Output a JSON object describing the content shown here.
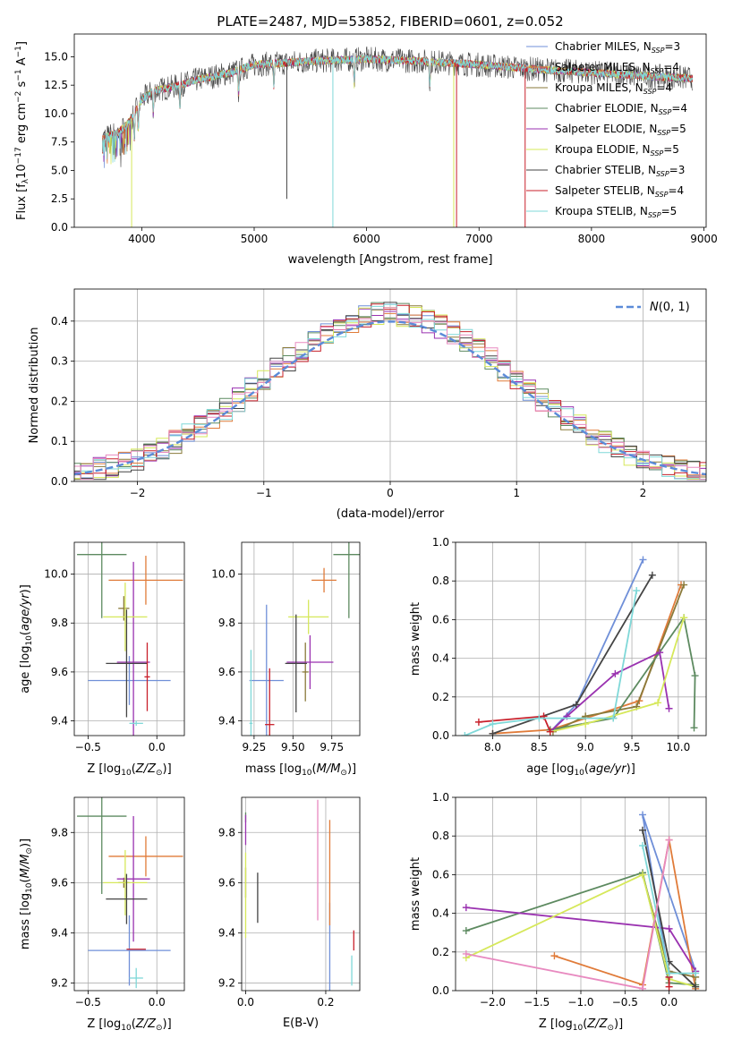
{
  "figure": {
    "title": "PLATE=2487, MJD=53852, FIBERID=0601, z=0.052"
  },
  "series_styles": [
    {
      "name": "Chabrier MILES",
      "legend": "Chabrier MILES, N",
      "nssp": "=3",
      "color": "#6f8fd8"
    },
    {
      "name": "Salpeter MILES",
      "legend": "Salpeter MILES, N",
      "nssp": "=4",
      "color": "#e07b39"
    },
    {
      "name": "Kroupa MILES",
      "legend": "Kroupa MILES, N",
      "nssp": "=4",
      "color": "#8a7a3a"
    },
    {
      "name": "Chabrier ELODIE",
      "legend": "Chabrier ELODIE, N",
      "nssp": "=4",
      "color": "#5d8a60"
    },
    {
      "name": "Salpeter ELODIE",
      "legend": "Salpeter ELODIE, N",
      "nssp": "=5",
      "color": "#9a32b0"
    },
    {
      "name": "Kroupa ELODIE",
      "legend": "Kroupa ELODIE, N",
      "nssp": "=5",
      "color": "#d6e85a"
    },
    {
      "name": "Chabrier STELIB",
      "legend": "Chabrier STELIB, N",
      "nssp": "=3",
      "color": "#444444"
    },
    {
      "name": "Salpeter STELIB",
      "legend": "Salpeter STELIB, N",
      "nssp": "=4",
      "color": "#c8202b"
    },
    {
      "name": "Kroupa STELIB",
      "legend": "Kroupa STELIB, N",
      "nssp": "=5",
      "color": "#7fd8d8"
    }
  ],
  "chart_data": [
    {
      "id": "spectrum",
      "type": "line",
      "xlabel": "wavelength [Angstrom, rest frame]",
      "ylabel": "Flux [f",
      "ylabel_unit": "10",
      "ylabel_tail": " erg cm",
      "xlim": [
        3400,
        9020
      ],
      "ylim": [
        0,
        17
      ],
      "xticks": [
        "4000",
        "5000",
        "6000",
        "7000",
        "8000",
        "9000"
      ],
      "yticks": [
        "0.0",
        "2.5",
        "5.0",
        "7.5",
        "10.0",
        "12.5",
        "15.0"
      ],
      "continuum": [
        [
          3650,
          7.8
        ],
        [
          3800,
          8.4
        ],
        [
          3900,
          9.4
        ],
        [
          4000,
          11.2
        ],
        [
          4100,
          12.0
        ],
        [
          4300,
          12.4
        ],
        [
          4500,
          13.0
        ],
        [
          4800,
          13.6
        ],
        [
          5000,
          14.3
        ],
        [
          5500,
          14.6
        ],
        [
          6000,
          14.8
        ],
        [
          6500,
          14.6
        ],
        [
          7000,
          14.3
        ],
        [
          7500,
          13.9
        ],
        [
          8000,
          13.6
        ],
        [
          8500,
          13.3
        ],
        [
          8900,
          13.1
        ]
      ],
      "data_range": [
        3650,
        8900
      ],
      "dropouts": [
        {
          "series": "Kroupa ELODIE",
          "x": 3910,
          "y": 0
        },
        {
          "series": "Kroupa STELIB",
          "x": 5700,
          "y": 0
        },
        {
          "series": "Kroupa ELODIE",
          "x": 6775,
          "y": 0
        },
        {
          "series": "Salpeter STELIB",
          "x": 6800,
          "y": 0
        },
        {
          "series": "Salpeter STELIB",
          "x": 7410,
          "y": 0
        },
        {
          "series": "Chabrier STELIB",
          "x": 5290,
          "y": 2.5
        }
      ]
    },
    {
      "id": "residuals",
      "type": "histogram",
      "xlabel": "(data-model)/error",
      "ylabel": "Normed distribution",
      "xlim": [
        -2.5,
        2.5
      ],
      "ylim": [
        0,
        0.48
      ],
      "xticks": [
        -2,
        -1,
        0,
        1,
        2
      ],
      "yticks": [
        0.0,
        0.1,
        0.2,
        0.3,
        0.4
      ],
      "reference_curve": {
        "name": "N(0,1)",
        "mean": 0,
        "sigma": 1,
        "color": "#5b8bd8"
      },
      "bin_width": 0.1
    },
    {
      "id": "age_vs_Z",
      "type": "errorbar",
      "xlabel": "Z [log",
      "ylabel": "age  [log",
      "xlim": [
        -0.6,
        0.2
      ],
      "ylim": [
        9.34,
        10.13
      ],
      "xticks": [
        "−0.5",
        "0.0"
      ],
      "yticks": [
        "9.4",
        "9.6",
        "9.8",
        "10.0"
      ],
      "points": [
        {
          "series": "Chabrier MILES",
          "x": -0.2,
          "xerr": 0.3,
          "y": 9.565,
          "yerr": 0.1
        },
        {
          "series": "Salpeter MILES",
          "x": -0.08,
          "xerr": 0.27,
          "y": 9.975,
          "yerr": 0.1
        },
        {
          "series": "Kroupa MILES",
          "x": -0.24,
          "xerr": 0.04,
          "y": 9.86,
          "yerr": 0.05
        },
        {
          "series": "Chabrier ELODIE",
          "x": -0.4,
          "xerr": 0.18,
          "y": 10.08,
          "yerr": 0.26
        },
        {
          "series": "Salpeter ELODIE",
          "x": -0.17,
          "xerr": 0.12,
          "y": 9.64,
          "yerr": 0.41
        },
        {
          "series": "Kroupa ELODIE",
          "x": -0.23,
          "xerr": 0.16,
          "y": 9.825,
          "yerr": 0.14
        },
        {
          "series": "Chabrier STELIB",
          "x": -0.22,
          "xerr": 0.15,
          "y": 9.635,
          "yerr": 0.22
        },
        {
          "series": "Salpeter STELIB",
          "x": -0.07,
          "xerr": 0.02,
          "y": 9.58,
          "yerr": 0.14
        },
        {
          "series": "Kroupa STELIB",
          "x": -0.15,
          "xerr": 0.05,
          "y": 9.39,
          "yerr": 0.01
        }
      ]
    },
    {
      "id": "age_vs_mass",
      "type": "errorbar",
      "xlabel": "mass [log",
      "ylabel": "",
      "xlim": [
        9.17,
        9.93
      ],
      "ylim": [
        9.34,
        10.13
      ],
      "xticks": [
        "9.25",
        "9.50",
        "9.75"
      ],
      "yticks": [
        "9.4",
        "9.6",
        "9.8",
        "10.0"
      ],
      "points": [
        {
          "series": "Chabrier MILES",
          "x": 9.33,
          "xerr": 0.11,
          "y": 9.565,
          "yerr": 0.31
        },
        {
          "series": "Salpeter MILES",
          "x": 9.7,
          "xerr": 0.08,
          "y": 9.975,
          "yerr": 0.05
        },
        {
          "series": "Kroupa MILES",
          "x": 9.58,
          "xerr": 0.02,
          "y": 9.6,
          "yerr": 0.12
        },
        {
          "series": "Chabrier ELODIE",
          "x": 9.86,
          "xerr": 0.1,
          "y": 10.08,
          "yerr": 0.26
        },
        {
          "series": "Salpeter ELODIE",
          "x": 9.61,
          "xerr": 0.15,
          "y": 9.64,
          "yerr": 0.11
        },
        {
          "series": "Kroupa ELODIE",
          "x": 9.6,
          "xerr": 0.13,
          "y": 9.825,
          "yerr": 0.07
        },
        {
          "series": "Chabrier STELIB",
          "x": 9.52,
          "xerr": 0.07,
          "y": 9.635,
          "yerr": 0.2
        },
        {
          "series": "Salpeter STELIB",
          "x": 9.35,
          "xerr": 0.03,
          "y": 9.385,
          "yerr": 0.23
        },
        {
          "series": "Kroupa STELIB",
          "x": 9.23,
          "xerr": 0.01,
          "y": 9.39,
          "yerr": 0.3
        }
      ]
    },
    {
      "id": "mass_weight_vs_age",
      "type": "line",
      "xlabel": "age  [log",
      "ylabel": "mass weight",
      "xlim": [
        7.6,
        10.3
      ],
      "ylim": [
        0,
        1
      ],
      "xticks": [
        "8.0",
        "8.5",
        "9.0",
        "9.5",
        "10.0"
      ],
      "yticks": [
        "0.0",
        "0.2",
        "0.4",
        "0.6",
        "0.8",
        "1.0"
      ],
      "series": [
        {
          "name": "Chabrier MILES",
          "x": [
            8.62,
            8.9,
            9.62
          ],
          "y": [
            0.02,
            0.16,
            0.91
          ]
        },
        {
          "name": "Salpeter MILES",
          "x": [
            8.0,
            8.62,
            9.58,
            10.03
          ],
          "y": [
            0.01,
            0.03,
            0.18,
            0.78
          ]
        },
        {
          "name": "Kroupa MILES",
          "x": [
            8.65,
            9.0,
            9.55,
            10.06
          ],
          "y": [
            0.02,
            0.1,
            0.15,
            0.78
          ]
        },
        {
          "name": "Chabrier ELODIE",
          "x": [
            8.62,
            9.3,
            10.06,
            10.18,
            10.17
          ],
          "y": [
            0.03,
            0.09,
            0.61,
            0.31,
            0.04
          ]
        },
        {
          "name": "Salpeter ELODIE",
          "x": [
            8.62,
            8.8,
            9.32,
            9.8,
            9.9
          ],
          "y": [
            0.02,
            0.1,
            0.32,
            0.43,
            0.14
          ]
        },
        {
          "name": "Kroupa ELODIE",
          "x": [
            8.62,
            9.0,
            9.78,
            10.06
          ],
          "y": [
            0.02,
            0.06,
            0.17,
            0.61
          ]
        },
        {
          "name": "Chabrier STELIB",
          "x": [
            8.0,
            8.9,
            9.72
          ],
          "y": [
            0.01,
            0.16,
            0.83
          ]
        },
        {
          "name": "Salpeter STELIB",
          "x": [
            7.85,
            8.55,
            8.62
          ],
          "y": [
            0.07,
            0.1,
            0.02
          ]
        },
        {
          "name": "Kroupa STELIB",
          "x": [
            7.7,
            8.0,
            8.5,
            9.3,
            9.55
          ],
          "y": [
            0.0,
            0.06,
            0.09,
            0.09,
            0.75
          ]
        }
      ]
    },
    {
      "id": "mass_vs_Z",
      "type": "errorbar",
      "xlabel": "Z [log",
      "ylabel": "mass [log",
      "xlim": [
        -0.6,
        0.2
      ],
      "ylim": [
        9.17,
        9.94
      ],
      "xticks": [
        "−0.5",
        "0.0"
      ],
      "yticks": [
        "9.2",
        "9.4",
        "9.6",
        "9.8"
      ],
      "points": [
        {
          "series": "Chabrier MILES",
          "x": -0.2,
          "xerr": 0.3,
          "y": 9.33,
          "yerr": 0.14
        },
        {
          "series": "Salpeter MILES",
          "x": -0.08,
          "xerr": 0.27,
          "y": 9.705,
          "yerr": 0.08
        },
        {
          "series": "Kroupa MILES",
          "x": -0.24,
          "xerr": 0.04,
          "y": 9.6,
          "yerr": 0.02
        },
        {
          "series": "Chabrier ELODIE",
          "x": -0.4,
          "xerr": 0.18,
          "y": 9.865,
          "yerr": 0.31
        },
        {
          "series": "Salpeter ELODIE",
          "x": -0.17,
          "xerr": 0.12,
          "y": 9.615,
          "yerr": 0.25
        },
        {
          "series": "Kroupa ELODIE",
          "x": -0.23,
          "xerr": 0.16,
          "y": 9.6,
          "yerr": 0.13
        },
        {
          "series": "Chabrier STELIB",
          "x": -0.22,
          "xerr": 0.15,
          "y": 9.535,
          "yerr": 0.1
        },
        {
          "series": "Salpeter STELIB",
          "x": -0.15,
          "xerr": 0.07,
          "y": 9.335,
          "yerr": 0.0
        },
        {
          "series": "Kroupa STELIB",
          "x": -0.15,
          "xerr": 0.05,
          "y": 9.22,
          "yerr": 0.04
        }
      ]
    },
    {
      "id": "mass_vs_ebv",
      "type": "errorbar",
      "xlabel": "E(B-V)",
      "ylabel": "",
      "xlim": [
        -0.01,
        0.285
      ],
      "ylim": [
        9.17,
        9.94
      ],
      "xticks": [
        "0.0",
        "0.2"
      ],
      "yticks": [
        "9.2",
        "9.4",
        "9.6",
        "9.8"
      ],
      "points": [
        {
          "series": "Chabrier MILES",
          "x": 0.21,
          "xerr": 0,
          "y": 9.33,
          "yerr": 0.19
        },
        {
          "series": "Salpeter MILES",
          "x": 0.21,
          "xerr": 0,
          "y": 9.64,
          "yerr": 0.21
        },
        {
          "series": "Kroupa MILES",
          "x": 0.0,
          "xerr": 0,
          "y": 9.6,
          "yerr": 0.06
        },
        {
          "series": "Chabrier ELODIE",
          "x": 0.0,
          "xerr": 0,
          "y": 9.86,
          "yerr": 0.02
        },
        {
          "series": "Salpeter ELODIE",
          "x": 0.0,
          "xerr": 0,
          "y": 9.81,
          "yerr": 0.06
        },
        {
          "series": "Kroupa ELODIE",
          "x": 0.0,
          "xerr": 0,
          "y": 9.55,
          "yerr": 0.17
        },
        {
          "series": "Chabrier STELIB",
          "x": 0.03,
          "xerr": 0,
          "y": 9.54,
          "yerr": 0.1
        },
        {
          "series": "Salpeter STELIB",
          "x": 0.27,
          "xerr": 0,
          "y": 9.37,
          "yerr": 0.04
        },
        {
          "series": "Kroupa STELIB",
          "x": 0.265,
          "xerr": 0,
          "y": 9.25,
          "yerr": 0.06
        },
        {
          "series": "Salpeter MILES pink",
          "x": 0.18,
          "xerr": 0,
          "y": 9.69,
          "yerr": 0.24
        }
      ]
    },
    {
      "id": "mass_weight_vs_Z",
      "type": "line",
      "xlabel": "Z [log",
      "ylabel": "mass weight",
      "xlim": [
        -2.42,
        0.42
      ],
      "ylim": [
        0,
        1
      ],
      "xticks": [
        "−2.0",
        "−1.5",
        "−1.0",
        "−0.5",
        "0.0"
      ],
      "yticks": [
        "0.0",
        "0.2",
        "0.4",
        "0.6",
        "0.8",
        "1.0"
      ],
      "series": [
        {
          "name": "Chabrier MILES",
          "x": [
            0.3,
            -0.3,
            0.0
          ],
          "y": [
            0.1,
            0.91,
            0.07
          ]
        },
        {
          "name": "Salpeter MILES",
          "x": [
            -1.3,
            -0.3,
            0.0,
            0.3
          ],
          "y": [
            0.18,
            0.03,
            0.78,
            0.01
          ]
        },
        {
          "name": "Kroupa MILES",
          "x": [
            -0.3,
            0.0,
            0.3
          ],
          "y": [
            0.6,
            0.1,
            0.07
          ]
        },
        {
          "name": "Chabrier ELODIE",
          "x": [
            -2.3,
            -0.3,
            0.0,
            0.3
          ],
          "y": [
            0.31,
            0.61,
            0.04,
            0.03
          ]
        },
        {
          "name": "Salpeter ELODIE",
          "x": [
            -2.3,
            0.0,
            0.3
          ],
          "y": [
            0.43,
            0.32,
            0.1
          ]
        },
        {
          "name": "Kroupa ELODIE",
          "x": [
            -2.3,
            -0.3,
            0.0,
            0.3
          ],
          "y": [
            0.17,
            0.6,
            0.06,
            0.02
          ]
        },
        {
          "name": "Chabrier STELIB",
          "x": [
            -0.3,
            0.0,
            0.3
          ],
          "y": [
            0.83,
            0.15,
            0.02
          ]
        },
        {
          "name": "Salpeter STELIB",
          "x": [
            0.0,
            0.0
          ],
          "y": [
            0.07,
            0.02
          ]
        },
        {
          "name": "Kroupa STELIB",
          "x": [
            -0.3,
            0.0,
            0.3
          ],
          "y": [
            0.75,
            0.09,
            0.09
          ]
        },
        {
          "name": "Kroupa pink",
          "x": [
            -2.3,
            -0.3,
            0.0
          ],
          "y": [
            0.19,
            0.01,
            0.78
          ]
        }
      ]
    }
  ]
}
